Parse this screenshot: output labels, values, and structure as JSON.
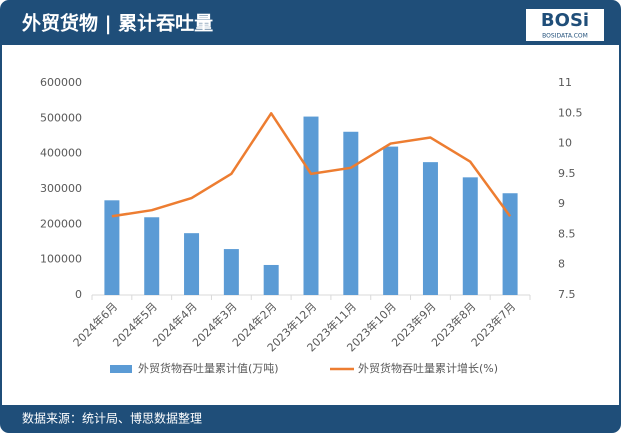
{
  "logo": {
    "brand": "BOSi",
    "site": "BOSIDATA.COM"
  },
  "chart_data": {
    "type": "bar-line",
    "title": "外贸货物 | 累计吞吐量",
    "source": "数据来源：统计局、博思数据整理",
    "categories": [
      "2024年6月",
      "2024年5月",
      "2024年4月",
      "2024年3月",
      "2024年2月",
      "2023年12月",
      "2023年11月",
      "2023年10月",
      "2023年9月",
      "2023年8月",
      "2023年7月"
    ],
    "series": [
      {
        "name": "外贸货物吞吐量累计值(万吨)",
        "color": "#5b9bd5",
        "type": "bar",
        "values": [
          268000,
          220000,
          175000,
          130000,
          85000,
          505000,
          462000,
          420000,
          376000,
          333000,
          288000
        ]
      },
      {
        "name": "外贸货物吞吐量累计增长(%)",
        "color": "#ed7d31",
        "type": "line",
        "axis": "y2",
        "values": [
          8.8,
          8.9,
          9.1,
          9.5,
          10.5,
          9.5,
          9.6,
          10.0,
          10.1,
          9.7,
          8.8
        ]
      }
    ],
    "ylim": [
      0,
      600000
    ],
    "yticks": [
      0,
      100000,
      200000,
      300000,
      400000,
      500000,
      600000
    ],
    "y2lim": [
      7.5,
      11
    ],
    "y2ticks": [
      7.5,
      8,
      8.5,
      9,
      9.5,
      10,
      10.5,
      11
    ],
    "legend": "bottom"
  }
}
